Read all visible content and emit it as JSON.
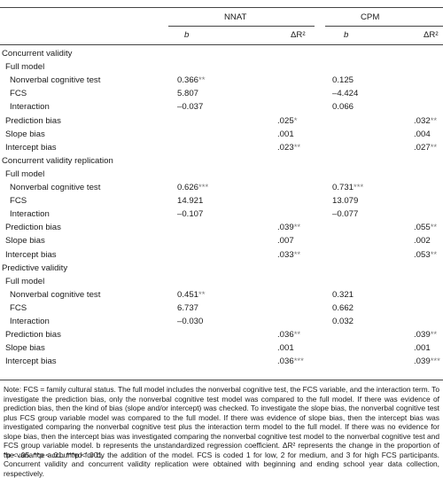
{
  "headers": {
    "group_nnat": "NNAT",
    "group_cpm": "CPM",
    "col_b": "b",
    "col_dr2": "ΔR²"
  },
  "rows": [
    {
      "label": "Concurrent validity",
      "indent": 0,
      "nb": "",
      "nbs": "",
      "nr": "",
      "nrs": "",
      "cb": "",
      "cbs": "",
      "cr": "",
      "crs": ""
    },
    {
      "label": "Full model",
      "indent": 1,
      "nb": "",
      "nbs": "",
      "nr": "",
      "nrs": "",
      "cb": "",
      "cbs": "",
      "cr": "",
      "crs": ""
    },
    {
      "label": "Nonverbal cognitive test",
      "indent": 2,
      "nb": "0.366",
      "nbs": "**",
      "nr": "",
      "nrs": "",
      "cb": "0.125",
      "cbs": "",
      "cr": "",
      "crs": ""
    },
    {
      "label": "FCS",
      "indent": 2,
      "nb": "5.807",
      "nbs": "",
      "nr": "",
      "nrs": "",
      "cb": "–4.424",
      "cbs": "",
      "cr": "",
      "crs": ""
    },
    {
      "label": "Interaction",
      "indent": 2,
      "nb": "–0.037",
      "nbs": "",
      "nr": "",
      "nrs": "",
      "cb": "0.066",
      "cbs": "",
      "cr": "",
      "crs": ""
    },
    {
      "label": "Prediction bias",
      "indent": 1,
      "nb": "",
      "nbs": "",
      "nr": ".025",
      "nrs": "*",
      "cb": "",
      "cbs": "",
      "cr": ".032",
      "crs": "**"
    },
    {
      "label": "Slope bias",
      "indent": 1,
      "nb": "",
      "nbs": "",
      "nr": ".001",
      "nrs": "",
      "cb": "",
      "cbs": "",
      "cr": ".004",
      "crs": ""
    },
    {
      "label": "Intercept bias",
      "indent": 1,
      "nb": "",
      "nbs": "",
      "nr": ".023",
      "nrs": "**",
      "cb": "",
      "cbs": "",
      "cr": ".027",
      "crs": "**"
    },
    {
      "label": "Concurrent validity replication",
      "indent": 0,
      "nb": "",
      "nbs": "",
      "nr": "",
      "nrs": "",
      "cb": "",
      "cbs": "",
      "cr": "",
      "crs": ""
    },
    {
      "label": "Full model",
      "indent": 1,
      "nb": "",
      "nbs": "",
      "nr": "",
      "nrs": "",
      "cb": "",
      "cbs": "",
      "cr": "",
      "crs": ""
    },
    {
      "label": "Nonverbal cognitive test",
      "indent": 2,
      "nb": "0.626",
      "nbs": "***",
      "nr": "",
      "nrs": "",
      "cb": "0.731",
      "cbs": "***",
      "cr": "",
      "crs": ""
    },
    {
      "label": "FCS",
      "indent": 2,
      "nb": "14.921",
      "nbs": "",
      "nr": "",
      "nrs": "",
      "cb": "13.079",
      "cbs": "",
      "cr": "",
      "crs": ""
    },
    {
      "label": "Interaction",
      "indent": 2,
      "nb": "–0.107",
      "nbs": "",
      "nr": "",
      "nrs": "",
      "cb": "–0.077",
      "cbs": "",
      "cr": "",
      "crs": ""
    },
    {
      "label": "Prediction bias",
      "indent": 1,
      "nb": "",
      "nbs": "",
      "nr": ".039",
      "nrs": "**",
      "cb": "",
      "cbs": "",
      "cr": ".055",
      "crs": "**"
    },
    {
      "label": "Slope bias",
      "indent": 1,
      "nb": "",
      "nbs": "",
      "nr": ".007",
      "nrs": "",
      "cb": "",
      "cbs": "",
      "cr": ".002",
      "crs": ""
    },
    {
      "label": "Intercept bias",
      "indent": 1,
      "nb": "",
      "nbs": "",
      "nr": ".033",
      "nrs": "**",
      "cb": "",
      "cbs": "",
      "cr": ".053",
      "crs": "**"
    },
    {
      "label": "Predictive validity",
      "indent": 0,
      "nb": "",
      "nbs": "",
      "nr": "",
      "nrs": "",
      "cb": "",
      "cbs": "",
      "cr": "",
      "crs": ""
    },
    {
      "label": "Full model",
      "indent": 1,
      "nb": "",
      "nbs": "",
      "nr": "",
      "nrs": "",
      "cb": "",
      "cbs": "",
      "cr": "",
      "crs": ""
    },
    {
      "label": "Nonverbal cognitive test",
      "indent": 2,
      "nb": "0.451",
      "nbs": "**",
      "nr": "",
      "nrs": "",
      "cb": "0.321",
      "cbs": "",
      "cr": "",
      "crs": ""
    },
    {
      "label": "FCS",
      "indent": 2,
      "nb": "6.737",
      "nbs": "",
      "nr": "",
      "nrs": "",
      "cb": "0.662",
      "cbs": "",
      "cr": "",
      "crs": ""
    },
    {
      "label": "Interaction",
      "indent": 2,
      "nb": "–0.030",
      "nbs": "",
      "nr": "",
      "nrs": "",
      "cb": "0.032",
      "cbs": "",
      "cr": "",
      "crs": ""
    },
    {
      "label": "Prediction bias",
      "indent": 1,
      "nb": "",
      "nbs": "",
      "nr": ".036",
      "nrs": "**",
      "cb": "",
      "cbs": "",
      "cr": ".039",
      "crs": "**"
    },
    {
      "label": "Slope bias",
      "indent": 1,
      "nb": "",
      "nbs": "",
      "nr": ".001",
      "nrs": "",
      "cb": "",
      "cbs": "",
      "cr": ".001",
      "crs": ""
    },
    {
      "label": "Intercept bias",
      "indent": 1,
      "nb": "",
      "nbs": "",
      "nr": ".036",
      "nrs": "***",
      "cb": "",
      "cbs": "",
      "cr": ".039",
      "crs": "***"
    }
  ],
  "note": "Note: FCS = family cultural status. The full model includes the nonverbal cognitive test, the FCS variable, and the interaction term. To investigate the prediction bias, only the nonverbal cognitive test model was compared to the full model. If there was evidence of prediction bias, then the kind of bias (slope and/or intercept) was checked. To investigate the slope bias, the nonverbal cognitive test plus FCS group variable model was compared to the full model. If there was evidence of slope bias, then the intercept bias was investigated comparing the nonverbal cognitive test plus the interaction term model to the full model. If there was no evidence for slope bias, then the intercept bias was investigated comparing the nonverbal cognitive test model to the nonverbal cognitive test and FCS group variable model. b represents the unstandardized regression coefficient. ΔR² represents the change in the proportion of the variance accounted for by the addition of the model. FCS is coded 1 for low, 2 for medium, and 3 for high FCS participants. Concurrent validity and concurrent validity replication were obtained with beginning and ending school year data collection, respectively.",
  "significance": "*p < .05. **p < .01. ***p < .001."
}
